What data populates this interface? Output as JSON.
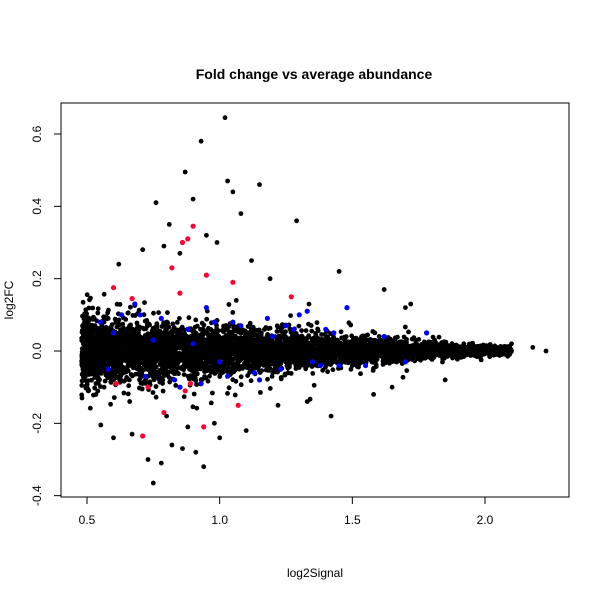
{
  "chart_data": {
    "type": "scatter",
    "title": "Fold change vs average abundance",
    "xlabel": "log2Signal",
    "ylabel": "log2FC",
    "xlim": [
      0.45,
      2.3
    ],
    "ylim": [
      -0.4,
      0.66
    ],
    "xticks": [
      {
        "value": 0.5,
        "label": "0.5"
      },
      {
        "value": 1.0,
        "label": "1.0"
      },
      {
        "value": 1.5,
        "label": "1.5"
      },
      {
        "value": 2.0,
        "label": "2.0"
      }
    ],
    "yticks": [
      {
        "value": -0.4,
        "label": "-0.4"
      },
      {
        "value": -0.2,
        "label": "-0.2"
      },
      {
        "value": 0.0,
        "label": "0.0"
      },
      {
        "value": 0.2,
        "label": "0.2"
      },
      {
        "value": 0.4,
        "label": "0.4"
      },
      {
        "value": 0.6,
        "label": "0.6"
      }
    ],
    "grid": false,
    "colors": {
      "background_points": "#000000",
      "highlight_blue": "#0000ff",
      "highlight_red": "#ff0033"
    },
    "series": [
      {
        "color": "#000000",
        "x": [
          1.02,
          0.93,
          0.87,
          1.03,
          1.15,
          0.76,
          1.05,
          0.9,
          1.08,
          0.81,
          0.95,
          1.29,
          1.45,
          1.62,
          1.7,
          0.62,
          0.85,
          0.99,
          1.12,
          0.79,
          0.75,
          0.73,
          0.78,
          0.91,
          0.94,
          0.86,
          0.82,
          1.0,
          1.1,
          0.67,
          0.6,
          0.8,
          1.22,
          0.98,
          0.88,
          1.33,
          1.58,
          1.65,
          1.85,
          2.1,
          2.18,
          2.23,
          0.5,
          0.55,
          0.58,
          1.42,
          1.19,
          0.71,
          1.81,
          1.92,
          2.05,
          1.72
        ],
        "y": [
          0.645,
          0.58,
          0.495,
          0.47,
          0.46,
          0.41,
          0.44,
          0.42,
          0.38,
          0.35,
          0.32,
          0.36,
          0.22,
          0.17,
          0.12,
          0.24,
          0.27,
          0.3,
          0.25,
          0.29,
          -0.365,
          -0.3,
          -0.31,
          -0.28,
          -0.32,
          -0.27,
          -0.26,
          -0.24,
          -0.22,
          -0.23,
          -0.24,
          -0.18,
          -0.15,
          -0.2,
          -0.21,
          -0.14,
          -0.12,
          -0.1,
          -0.08,
          0.02,
          0.01,
          0.0,
          0.04,
          -0.04,
          0.09,
          -0.18,
          0.2,
          0.28,
          0.03,
          0.02,
          -0.01,
          0.13
        ]
      },
      {
        "color": "#0000ff",
        "x": [
          0.55,
          0.58,
          0.63,
          0.68,
          0.72,
          0.78,
          0.83,
          0.88,
          0.93,
          0.98,
          1.03,
          1.08,
          1.13,
          1.18,
          1.23,
          1.28,
          1.33,
          1.38,
          1.43,
          1.48,
          1.55,
          1.62,
          1.7,
          1.78,
          0.6,
          0.7,
          0.85,
          0.95,
          1.05,
          1.15,
          1.25,
          1.35,
          1.45,
          0.75,
          0.9,
          1.0,
          1.2,
          1.3,
          1.4
        ],
        "y": [
          0.08,
          -0.05,
          0.1,
          0.13,
          -0.07,
          0.09,
          -0.08,
          0.06,
          -0.09,
          0.08,
          -0.07,
          0.07,
          -0.06,
          0.09,
          -0.05,
          0.06,
          0.11,
          -0.04,
          0.05,
          0.12,
          -0.04,
          0.04,
          -0.03,
          0.05,
          0.05,
          0.1,
          -0.1,
          0.12,
          0.08,
          -0.08,
          0.07,
          -0.03,
          -0.04,
          0.03,
          0.02,
          -0.03,
          0.04,
          0.1,
          0.06
        ]
      },
      {
        "color": "#ff0033",
        "x": [
          0.9,
          0.88,
          0.86,
          0.6,
          0.67,
          0.82,
          0.85,
          0.95,
          1.05,
          1.27,
          0.71,
          0.73,
          0.79,
          0.87,
          0.89,
          0.94,
          1.07,
          0.61
        ],
        "y": [
          0.345,
          0.31,
          0.3,
          0.175,
          0.145,
          0.23,
          0.16,
          0.21,
          0.19,
          0.15,
          -0.235,
          -0.1,
          -0.17,
          -0.11,
          -0.09,
          -0.21,
          -0.15,
          -0.09
        ]
      }
    ],
    "background_cloud": {
      "note_hidden": ""
    }
  }
}
